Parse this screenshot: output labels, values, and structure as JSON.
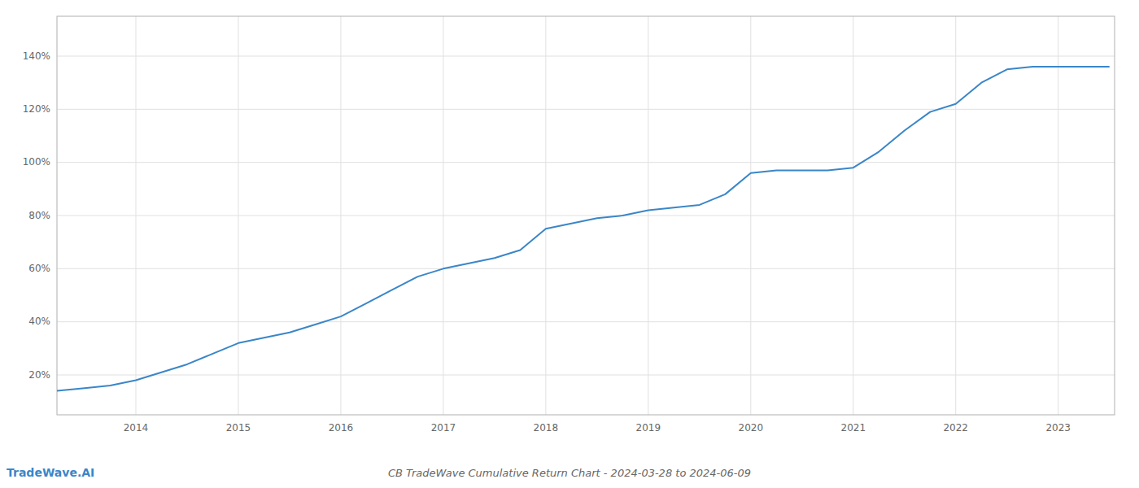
{
  "chart_data": {
    "type": "line",
    "title": "CB TradeWave Cumulative Return Chart - 2024-03-28 to 2024-06-09",
    "annotations": [
      "TradeWave.AI"
    ],
    "color": "#3a86c8",
    "grid": true,
    "x": [
      2013.23,
      2013.5,
      2013.75,
      2014.0,
      2014.25,
      2014.5,
      2014.75,
      2015.0,
      2015.25,
      2015.5,
      2015.75,
      2016.0,
      2016.25,
      2016.5,
      2016.75,
      2017.0,
      2017.25,
      2017.5,
      2017.75,
      2018.0,
      2018.25,
      2018.5,
      2018.75,
      2019.0,
      2019.25,
      2019.5,
      2019.75,
      2020.0,
      2020.25,
      2020.5,
      2020.75,
      2021.0,
      2021.25,
      2021.5,
      2021.75,
      2022.0,
      2022.25,
      2022.5,
      2022.75,
      2023.0,
      2023.25,
      2023.5
    ],
    "values": [
      14,
      15,
      16,
      18,
      21,
      24,
      28,
      32,
      34,
      36,
      39,
      42,
      47,
      52,
      57,
      60,
      62,
      64,
      67,
      75,
      77,
      79,
      80,
      82,
      83,
      84,
      88,
      96,
      97,
      97,
      97,
      98,
      104,
      112,
      119,
      122,
      130,
      135,
      136,
      136,
      136,
      136
    ],
    "xlim": [
      2013.23,
      2023.55
    ],
    "xticks": [
      2014,
      2015,
      2016,
      2017,
      2018,
      2019,
      2020,
      2021,
      2022,
      2023
    ],
    "ylim": [
      5,
      155
    ],
    "yticks": [
      {
        "value": 20,
        "label": "20%"
      },
      {
        "value": 40,
        "label": "40%"
      },
      {
        "value": 60,
        "label": "60%"
      },
      {
        "value": 80,
        "label": "80%"
      },
      {
        "value": 100,
        "label": "100%"
      },
      {
        "value": 120,
        "label": "120%"
      },
      {
        "value": 140,
        "label": "140%"
      }
    ]
  }
}
